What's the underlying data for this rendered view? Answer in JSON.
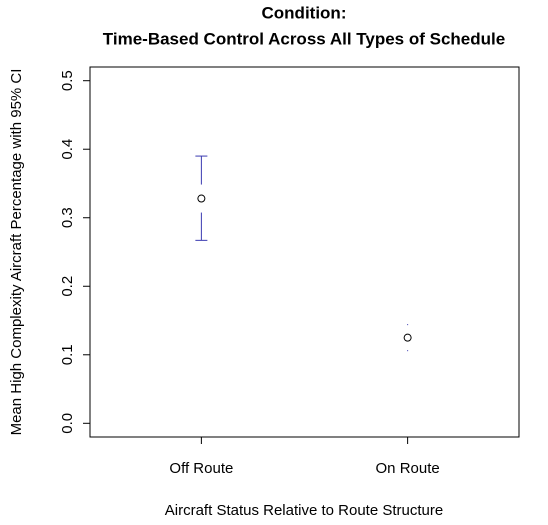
{
  "chart_data": {
    "type": "errorbar",
    "title": "Condition:",
    "subtitle": "Time-Based Control Across All Types of Schedule",
    "x_label": "Aircraft Status Relative to Route Structure",
    "y_label": "Mean High Complexity Aircraft Percentage with 95% CI",
    "categories": [
      "Off Route",
      "On Route"
    ],
    "values": [
      0.328,
      0.125
    ],
    "ci_lower": [
      0.267,
      0.106
    ],
    "ci_upper": [
      0.39,
      0.144
    ],
    "color": "#3a3ab0",
    "point_color": "#000000",
    "ylim": [
      -0.02,
      0.52
    ],
    "yticks": [
      {
        "value": 0,
        "label": "0.0"
      },
      0.1,
      0.2,
      0.3,
      0.4,
      0.5
    ]
  }
}
